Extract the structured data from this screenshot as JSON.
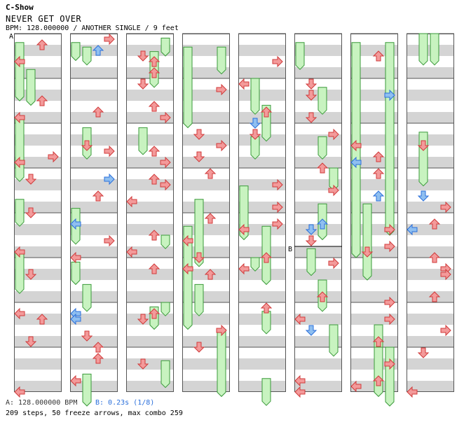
{
  "header": {
    "artist": "C-Show",
    "song_title": "NEVER GET OVER",
    "meta_line": "BPM: 128.000000 / ANOTHER SINGLE / 9 feet"
  },
  "markers": {
    "a": "A",
    "b": "B"
  },
  "footer": {
    "bpm_label": "A: 128.000000 BPM",
    "stop_label": "B: 0.23s (1/8)",
    "stats": "209 steps, 50 freeze arrows, max combo 259"
  },
  "colors": {
    "tap": "#f39a9a",
    "tap_stroke": "#d03a3a",
    "alt": "#8fbff0",
    "alt_stroke": "#2a6fdb",
    "freeze": "#c8f3c0",
    "freeze_stroke": "#3a9a3a",
    "stripe": "#d4d4d4"
  },
  "chart_data": {
    "type": "table",
    "columns": 8,
    "measures_per_column": 8,
    "lanes": [
      "left",
      "down",
      "up",
      "right"
    ],
    "freezes": [
      [
        1,
        0,
        0.2,
        1.5
      ],
      [
        1,
        0,
        1.9,
        3.3
      ],
      [
        1,
        0,
        3.7,
        4.3
      ],
      [
        1,
        0,
        4.9,
        5.8
      ],
      [
        1,
        1,
        0.8,
        1.6
      ],
      [
        2,
        0,
        0.2,
        0.6
      ],
      [
        2,
        0,
        3.9,
        4.7
      ],
      [
        2,
        0,
        5.1,
        5.6
      ],
      [
        2,
        1,
        0.3,
        0.7
      ],
      [
        2,
        1,
        2.1,
        2.8
      ],
      [
        2,
        1,
        5.6,
        6.2
      ],
      [
        2,
        1,
        7.6,
        9.8
      ],
      [
        3,
        3,
        0.1,
        0.5
      ],
      [
        3,
        2,
        0.4,
        1.2
      ],
      [
        3,
        1,
        2.1,
        2.7
      ],
      [
        3,
        3,
        4.5,
        4.8
      ],
      [
        3,
        2,
        6.1,
        6.6
      ],
      [
        3,
        3,
        6.0,
        6.3
      ],
      [
        3,
        3,
        7.3,
        7.9
      ],
      [
        4,
        0,
        0.3,
        2.1
      ],
      [
        4,
        3,
        0.3,
        0.9
      ],
      [
        4,
        1,
        3.7,
        5.2
      ],
      [
        4,
        0,
        4.3,
        6.6
      ],
      [
        4,
        1,
        5.6,
        6.3
      ],
      [
        4,
        3,
        6.6,
        8.1
      ],
      [
        5,
        1,
        1.0,
        1.8
      ],
      [
        5,
        2,
        1.6,
        2.4
      ],
      [
        5,
        1,
        2.3,
        2.8
      ],
      [
        5,
        0,
        3.4,
        4.6
      ],
      [
        5,
        2,
        4.3,
        5.6
      ],
      [
        5,
        1,
        5.0,
        5.3
      ],
      [
        5,
        2,
        6.2,
        6.7
      ],
      [
        5,
        2,
        7.7,
        8.3
      ],
      [
        6,
        0,
        0.2,
        0.8
      ],
      [
        6,
        2,
        1.2,
        1.8
      ],
      [
        6,
        2,
        2.3,
        2.8
      ],
      [
        6,
        3,
        3.0,
        3.5
      ],
      [
        6,
        2,
        3.8,
        4.6
      ],
      [
        6,
        1,
        4.8,
        5.4
      ],
      [
        6,
        2,
        5.5,
        6.2
      ],
      [
        6,
        3,
        6.5,
        7.2
      ],
      [
        7,
        0,
        0.2,
        5.0
      ],
      [
        7,
        3,
        0.2,
        4.5
      ],
      [
        7,
        1,
        3.8,
        5.5
      ],
      [
        7,
        3,
        7.0,
        8.4
      ],
      [
        7,
        2,
        6.5,
        7.8
      ],
      [
        7,
        2,
        7.0,
        8.1
      ],
      [
        8,
        1,
        0.0,
        0.7
      ],
      [
        8,
        2,
        0.0,
        0.7
      ],
      [
        8,
        1,
        2.2,
        3.4
      ]
    ]
  }
}
